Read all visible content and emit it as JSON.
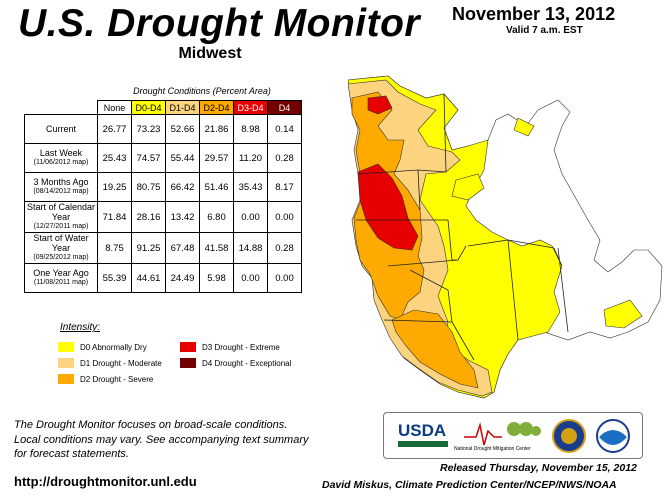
{
  "header": {
    "title": "U.S. Drought Monitor",
    "subtitle": "Midwest",
    "date": "November 13, 2012",
    "valid": "Valid 7 a.m. EST"
  },
  "table": {
    "caption": "Drought Conditions (Percent Area)",
    "columns": [
      {
        "label": "None",
        "color": "#ffffff",
        "text_color": "#000000"
      },
      {
        "label": "D0-D4",
        "color": "#ffff00",
        "text_color": "#000000"
      },
      {
        "label": "D1-D4",
        "color": "#fcd37f",
        "text_color": "#000000"
      },
      {
        "label": "D2-D4",
        "color": "#ffaa00",
        "text_color": "#000000"
      },
      {
        "label": "D3-D4",
        "color": "#e60000",
        "text_color": "#ffffff"
      },
      {
        "label": "D4",
        "color": "#730000",
        "text_color": "#ffffff"
      }
    ],
    "rows": [
      {
        "label": "Current",
        "sublabel": "",
        "values": [
          "26.77",
          "73.23",
          "52.66",
          "21.86",
          "8.98",
          "0.14"
        ]
      },
      {
        "label": "Last Week",
        "sublabel": "(11/06/2012 map)",
        "values": [
          "25.43",
          "74.57",
          "55.44",
          "29.57",
          "11.20",
          "0.28"
        ]
      },
      {
        "label": "3 Months Ago",
        "sublabel": "(08/14/2012 map)",
        "values": [
          "19.25",
          "80.75",
          "66.42",
          "51.46",
          "35.43",
          "8.17"
        ]
      },
      {
        "label": "Start of Calendar Year",
        "sublabel": "(12/27/2011 map)",
        "values": [
          "71.84",
          "28.16",
          "13.42",
          "6.80",
          "0.00",
          "0.00"
        ]
      },
      {
        "label": "Start of Water Year",
        "sublabel": "(09/25/2012 map)",
        "values": [
          "8.75",
          "91.25",
          "67.48",
          "41.58",
          "14.88",
          "0.28"
        ]
      },
      {
        "label": "One Year Ago",
        "sublabel": "(11/08/2011 map)",
        "values": [
          "55.39",
          "44.61",
          "24.49",
          "5.98",
          "0.00",
          "0.00"
        ]
      }
    ]
  },
  "legend": {
    "title": "Intensity:",
    "items": [
      {
        "label": "D0 Abnormally Dry",
        "color": "#ffff00"
      },
      {
        "label": "D1 Drought - Moderate",
        "color": "#fcd37f"
      },
      {
        "label": "D2 Drought - Severe",
        "color": "#ffaa00"
      },
      {
        "label": "D3 Drought - Extreme",
        "color": "#e60000"
      },
      {
        "label": "D4 Drought - Exceptional",
        "color": "#730000"
      }
    ]
  },
  "footnote": [
    "The Drought Monitor focuses on broad-scale conditions.",
    "Local conditions may vary. See accompanying text summary",
    "for forecast statements."
  ],
  "url": "http://droughtmonitor.unl.edu",
  "released": "Released Thursday, November 15, 2012",
  "author": "David Miskus, Climate Prediction Center/NCEP/NWS/NOAA",
  "logos": {
    "usda": "USDA",
    "ndmc": "National Drought Mitigation Center"
  }
}
